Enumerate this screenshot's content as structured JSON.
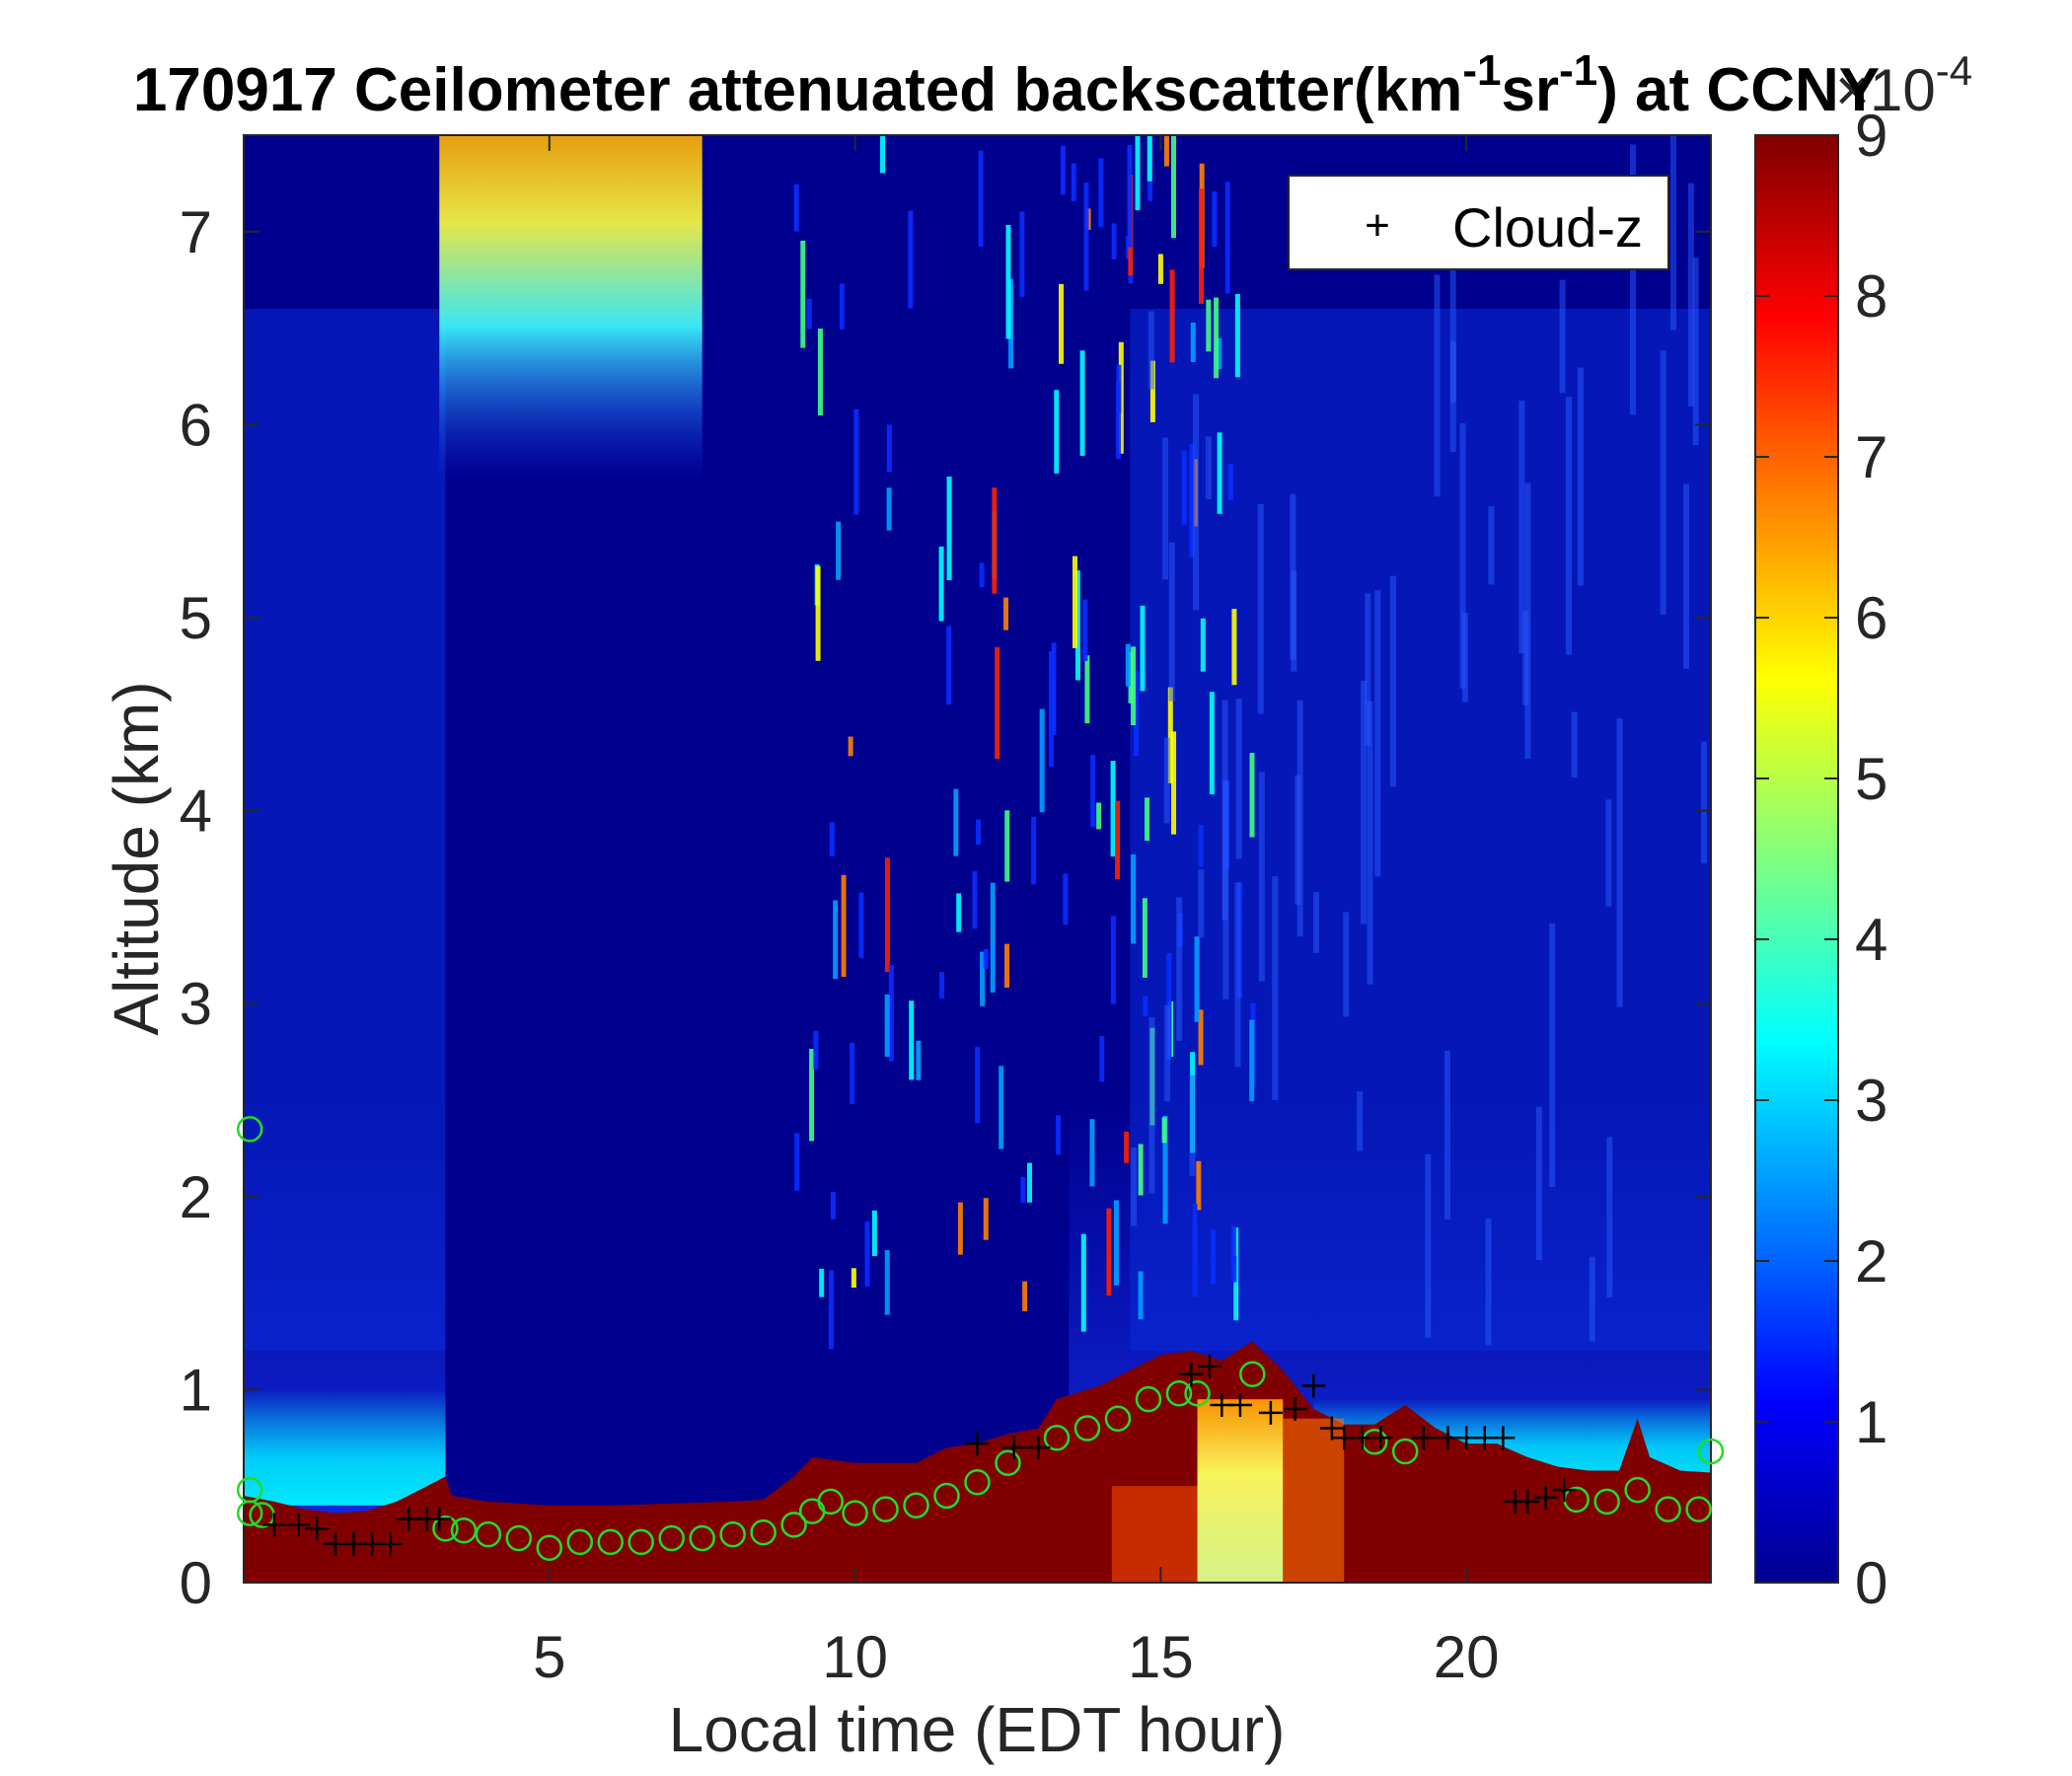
{
  "chart_data": {
    "type": "heatmap",
    "title": {
      "prefix": "170917 Ceilometer attenuated backscatter(km",
      "sup1": "-1",
      "mid": "sr",
      "sup2": "-1",
      "suffix": ") at CCNY"
    },
    "xlabel": "Local time (EDT hour)",
    "ylabel": "Altitude (km)",
    "xlim": [
      0,
      24
    ],
    "ylim": [
      0,
      7.5
    ],
    "xticks": [
      5,
      10,
      15,
      20
    ],
    "yticks": [
      0,
      1,
      2,
      3,
      4,
      5,
      6,
      7
    ],
    "colorbar": {
      "ticks": [
        0,
        1,
        2,
        3,
        4,
        5,
        6,
        7,
        8,
        9
      ],
      "range": [
        0,
        9
      ],
      "multiplier": "×10",
      "multiplier_exp": "-4",
      "colormap": "jet"
    },
    "legend": {
      "entries": [
        {
          "marker": "+",
          "label": "Cloud-z"
        }
      ],
      "placement": "top-right"
    },
    "colors": {
      "cloud_marker": "#000000",
      "pbl_marker": "#22dd22"
    },
    "boundary_layer_top_km": [
      [
        0.0,
        0.45
      ],
      [
        0.5,
        0.42
      ],
      [
        1.0,
        0.38
      ],
      [
        1.5,
        0.36
      ],
      [
        2.0,
        0.37
      ],
      [
        2.5,
        0.42
      ],
      [
        3.0,
        0.5
      ],
      [
        3.3,
        0.55
      ],
      [
        3.4,
        0.45
      ],
      [
        4.0,
        0.42
      ],
      [
        4.5,
        0.41
      ],
      [
        5.0,
        0.4
      ],
      [
        6.0,
        0.4
      ],
      [
        7.0,
        0.41
      ],
      [
        8.0,
        0.42
      ],
      [
        8.5,
        0.43
      ],
      [
        9.0,
        0.55
      ],
      [
        9.3,
        0.65
      ],
      [
        10.0,
        0.62
      ],
      [
        11.0,
        0.62
      ],
      [
        11.5,
        0.7
      ],
      [
        12.0,
        0.72
      ],
      [
        12.5,
        0.77
      ],
      [
        13.0,
        0.8
      ],
      [
        13.3,
        0.95
      ],
      [
        14.0,
        1.02
      ],
      [
        14.5,
        1.1
      ],
      [
        15.0,
        1.18
      ],
      [
        15.5,
        1.2
      ],
      [
        16.0,
        1.15
      ],
      [
        16.5,
        1.25
      ],
      [
        17.0,
        1.1
      ],
      [
        17.5,
        0.9
      ],
      [
        18.0,
        0.82
      ],
      [
        18.5,
        0.82
      ],
      [
        19.0,
        0.92
      ],
      [
        19.5,
        0.8
      ],
      [
        20.0,
        0.72
      ],
      [
        20.5,
        0.72
      ],
      [
        21.0,
        0.65
      ],
      [
        21.5,
        0.6
      ],
      [
        22.0,
        0.58
      ],
      [
        22.5,
        0.58
      ],
      [
        22.8,
        0.85
      ],
      [
        23.0,
        0.65
      ],
      [
        23.5,
        0.58
      ],
      [
        24.0,
        0.57
      ]
    ],
    "pbl_height_km": [
      [
        0.1,
        0.48
      ],
      [
        0.1,
        0.36
      ],
      [
        0.3,
        0.35
      ],
      [
        3.3,
        0.28
      ],
      [
        3.6,
        0.27
      ],
      [
        4.0,
        0.25
      ],
      [
        4.5,
        0.23
      ],
      [
        5.0,
        0.18
      ],
      [
        5.5,
        0.21
      ],
      [
        6.0,
        0.21
      ],
      [
        6.5,
        0.21
      ],
      [
        7.0,
        0.23
      ],
      [
        7.5,
        0.23
      ],
      [
        8.0,
        0.25
      ],
      [
        8.5,
        0.26
      ],
      [
        9.0,
        0.3
      ],
      [
        9.3,
        0.37
      ],
      [
        9.6,
        0.42
      ],
      [
        10.0,
        0.36
      ],
      [
        10.5,
        0.38
      ],
      [
        11.0,
        0.4
      ],
      [
        11.5,
        0.45
      ],
      [
        12.0,
        0.52
      ],
      [
        12.5,
        0.62
      ],
      [
        13.3,
        0.75
      ],
      [
        13.8,
        0.8
      ],
      [
        14.3,
        0.85
      ],
      [
        14.8,
        0.95
      ],
      [
        15.3,
        0.98
      ],
      [
        15.6,
        0.98
      ],
      [
        16.5,
        1.08
      ],
      [
        18.5,
        0.73
      ],
      [
        19.0,
        0.68
      ],
      [
        21.8,
        0.43
      ],
      [
        22.3,
        0.42
      ],
      [
        22.8,
        0.48
      ],
      [
        23.3,
        0.38
      ],
      [
        23.8,
        0.38
      ],
      [
        0.1,
        2.35
      ],
      [
        24.0,
        0.68
      ]
    ],
    "cloud_z_km": [
      [
        0.5,
        0.3
      ],
      [
        0.9,
        0.3
      ],
      [
        1.2,
        0.28
      ],
      [
        1.5,
        0.2
      ],
      [
        1.8,
        0.2
      ],
      [
        2.1,
        0.2
      ],
      [
        2.4,
        0.2
      ],
      [
        2.7,
        0.33
      ],
      [
        3.0,
        0.33
      ],
      [
        3.2,
        0.33
      ],
      [
        12.0,
        0.72
      ],
      [
        12.6,
        0.7
      ],
      [
        13.0,
        0.7
      ],
      [
        15.5,
        1.08
      ],
      [
        15.8,
        1.12
      ],
      [
        16.0,
        0.92
      ],
      [
        16.3,
        0.92
      ],
      [
        16.8,
        0.88
      ],
      [
        17.2,
        0.9
      ],
      [
        17.5,
        1.02
      ],
      [
        17.8,
        0.8
      ],
      [
        18.0,
        0.75
      ],
      [
        18.3,
        0.75
      ],
      [
        18.6,
        0.75
      ],
      [
        19.3,
        0.75
      ],
      [
        19.7,
        0.75
      ],
      [
        20.0,
        0.75
      ],
      [
        20.3,
        0.75
      ],
      [
        20.6,
        0.75
      ],
      [
        20.8,
        0.42
      ],
      [
        21.0,
        0.42
      ],
      [
        21.3,
        0.44
      ],
      [
        21.6,
        0.48
      ]
    ]
  }
}
